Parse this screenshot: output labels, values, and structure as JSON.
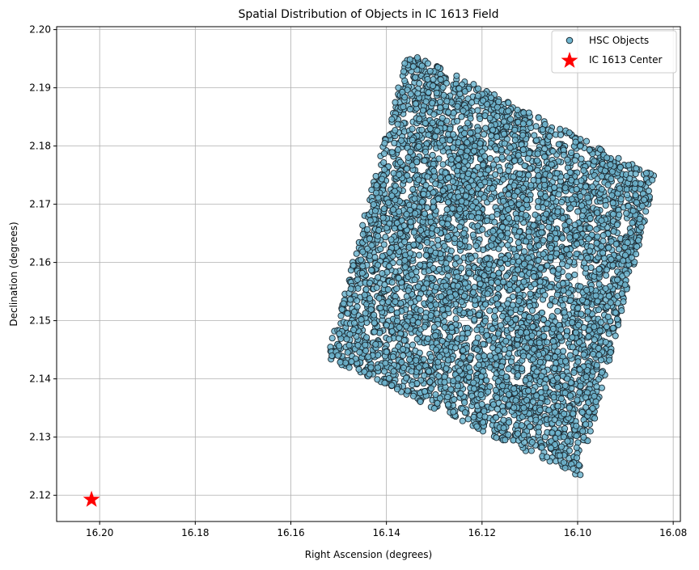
{
  "chart_data": {
    "type": "scatter",
    "title": "Spatial Distribution of Objects in IC 1613 Field",
    "xlabel": "Right Ascension (degrees)",
    "ylabel": "Declination (degrees)",
    "x_inverted": true,
    "xlim": [
      16.209,
      16.0785
    ],
    "ylim": [
      2.1155,
      2.2005
    ],
    "grid": true,
    "legend_position": "upper-right",
    "x_ticks": [
      "16.20",
      "16.18",
      "16.16",
      "16.14",
      "16.12",
      "16.10",
      "16.08"
    ],
    "x_tick_values": [
      16.2,
      16.18,
      16.16,
      16.14,
      16.12,
      16.1,
      16.08
    ],
    "y_ticks": [
      "2.12",
      "2.13",
      "2.14",
      "2.15",
      "2.16",
      "2.17",
      "2.18",
      "2.19",
      "2.20"
    ],
    "y_tick_values": [
      2.12,
      2.13,
      2.14,
      2.15,
      2.16,
      2.17,
      2.18,
      2.19,
      2.2
    ],
    "series": [
      {
        "name": "HSC Objects",
        "marker": "circle",
        "color": "#6fb5cf",
        "edge_color": "#1c2b33",
        "field_corners": [
          [
            16.1355,
            2.1963
          ],
          [
            16.0835,
            2.1748
          ],
          [
            16.0995,
            2.1232
          ],
          [
            16.1525,
            2.1435
          ]
        ],
        "gaps": [
          [
            [
              16.1125,
              2.188
            ],
            [
              16.117,
              2.172
            ],
            [
              16.1225,
              2.155
            ],
            [
              16.1265,
              2.14
            ],
            [
              16.13,
              2.131
            ]
          ],
          [
            [
              16.111,
              2.187
            ],
            [
              16.106,
              2.16
            ],
            [
              16.101,
              2.14
            ],
            [
              16.099,
              2.125
            ]
          ]
        ]
      },
      {
        "name": "IC 1613 Center",
        "marker": "star",
        "color": "#ff0000",
        "points": [
          [
            16.2017,
            2.1194
          ]
        ]
      }
    ]
  }
}
